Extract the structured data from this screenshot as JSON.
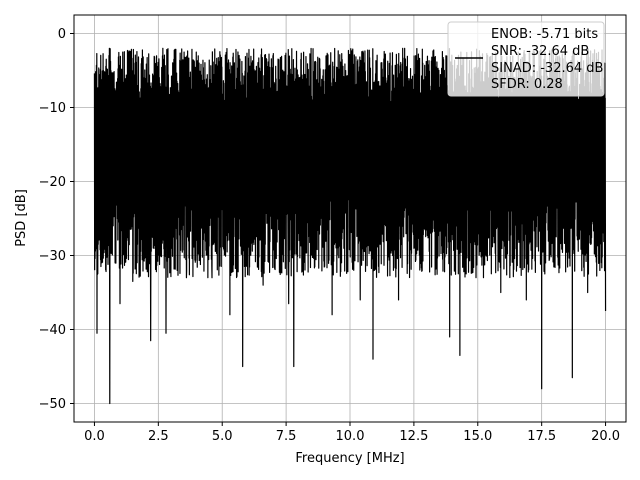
{
  "chart_data": {
    "type": "line",
    "xlabel": "Frequency [MHz]",
    "ylabel": "PSD [dB]",
    "xlim": [
      -0.8,
      20.8
    ],
    "ylim": [
      -52.5,
      2.5
    ],
    "x_ticks": [
      0.0,
      2.5,
      5.0,
      7.5,
      10.0,
      12.5,
      15.0,
      17.5,
      20.0
    ],
    "x_tick_labels": [
      "0.0",
      "2.5",
      "5.0",
      "7.5",
      "10.0",
      "12.5",
      "15.0",
      "17.5",
      "20.0"
    ],
    "y_ticks": [
      0,
      -10,
      -20,
      -30,
      -40,
      -50
    ],
    "y_tick_labels": [
      "0",
      "−10",
      "−20",
      "−30",
      "−40",
      "−50"
    ],
    "grid": true,
    "legend_position": "top-right",
    "series": [
      {
        "legend_lines": [
          "ENOB: -5.71 bits",
          "SNR: -32.64 dB",
          "SINAD: -32.64 dB",
          "SFDR: 0.28"
        ],
        "color": "#000000",
        "x_range": [
          0.0,
          20.0
        ],
        "envelope_top": -2.0,
        "envelope_body_bottom": -27.0,
        "notable_dips": [
          {
            "x": 0.1,
            "y": -40.5
          },
          {
            "x": 0.6,
            "y": -50.0
          },
          {
            "x": 1.0,
            "y": -36.5
          },
          {
            "x": 1.5,
            "y": -33.5
          },
          {
            "x": 2.2,
            "y": -41.5
          },
          {
            "x": 2.8,
            "y": -40.5
          },
          {
            "x": 3.6,
            "y": -33.0
          },
          {
            "x": 4.6,
            "y": -33.0
          },
          {
            "x": 5.3,
            "y": -38.0
          },
          {
            "x": 5.8,
            "y": -45.0
          },
          {
            "x": 6.6,
            "y": -34.0
          },
          {
            "x": 7.6,
            "y": -36.5
          },
          {
            "x": 7.8,
            "y": -45.0
          },
          {
            "x": 9.3,
            "y": -38.0
          },
          {
            "x": 10.4,
            "y": -36.0
          },
          {
            "x": 10.9,
            "y": -44.0
          },
          {
            "x": 11.9,
            "y": -36.0
          },
          {
            "x": 13.9,
            "y": -41.0
          },
          {
            "x": 14.3,
            "y": -43.5
          },
          {
            "x": 15.9,
            "y": -35.0
          },
          {
            "x": 16.9,
            "y": -36.0
          },
          {
            "x": 17.5,
            "y": -48.0
          },
          {
            "x": 18.7,
            "y": -46.5
          },
          {
            "x": 19.3,
            "y": -35.0
          },
          {
            "x": 20.0,
            "y": -37.5
          }
        ]
      }
    ]
  }
}
